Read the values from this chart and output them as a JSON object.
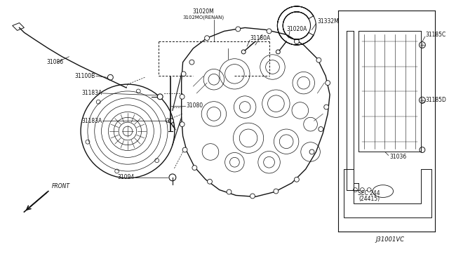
{
  "bg_color": "#ffffff",
  "line_color": "#111111",
  "fig_width": 6.4,
  "fig_height": 3.72,
  "dpi": 100,
  "diagram_id": "J31001VC",
  "parts": {
    "31020M_label": "31020M",
    "31020M_sub": "3102MO(RENAN)",
    "31020A": "31020A",
    "31332M": "31332M",
    "31180A": "31180A",
    "31003": "31100B",
    "31086": "31086",
    "31183A_1": "31183A",
    "31183A_2": "31183A",
    "31080": "31080",
    "31094": "31094",
    "31185C": "31185C",
    "31185D": "31185D",
    "31036": "31036",
    "SEC244": "SEC 244\n(24415)"
  }
}
